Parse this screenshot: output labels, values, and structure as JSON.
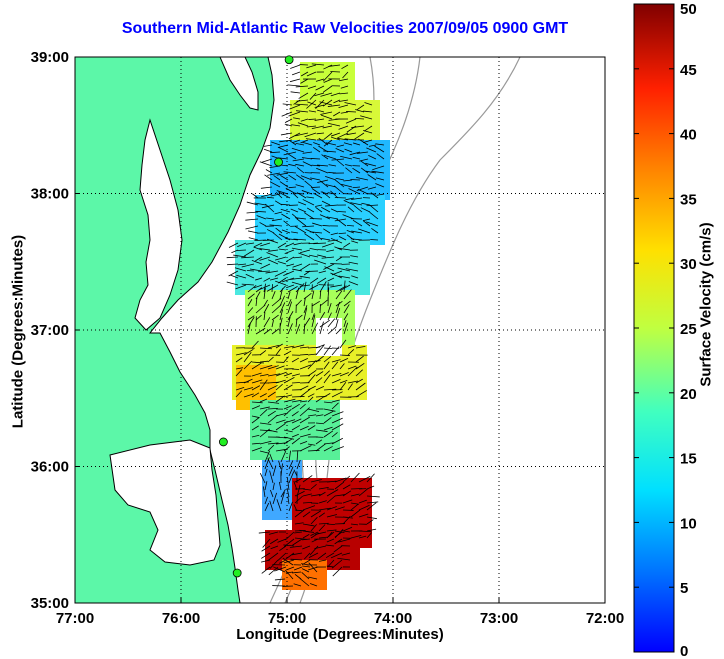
{
  "map": {
    "title": "Southern Mid-Atlantic Raw Velocities 2007/09/05 0900 GMT",
    "xlabel": "Longitude (Degrees:Minutes)",
    "ylabel": "Latitude (Degrees:Minutes)",
    "lon_ticks": [
      "77:00",
      "76:00",
      "75:00",
      "74:00",
      "73:00",
      "72:00"
    ],
    "lat_ticks": [
      "39:00",
      "38:00",
      "37:00",
      "36:00",
      "35:00"
    ],
    "lon_range": [
      -77,
      -72
    ],
    "lat_range": [
      35,
      39
    ],
    "grid": "dotted",
    "land_color": "#5cf7a8",
    "bathymetry_color": "#999999"
  },
  "colorbar": {
    "label": "Surface Velocity (cm/s)",
    "ticks": [
      "0",
      "5",
      "10",
      "15",
      "20",
      "25",
      "30",
      "35",
      "40",
      "45",
      "50"
    ],
    "range": [
      0,
      50
    ],
    "colormap": "jet"
  },
  "stations": [
    {
      "lon": -74.98,
      "lat": 38.98
    },
    {
      "lon": -75.08,
      "lat": 38.23
    },
    {
      "lon": -75.6,
      "lat": 36.18
    },
    {
      "lon": -75.47,
      "lat": 35.22
    }
  ]
}
